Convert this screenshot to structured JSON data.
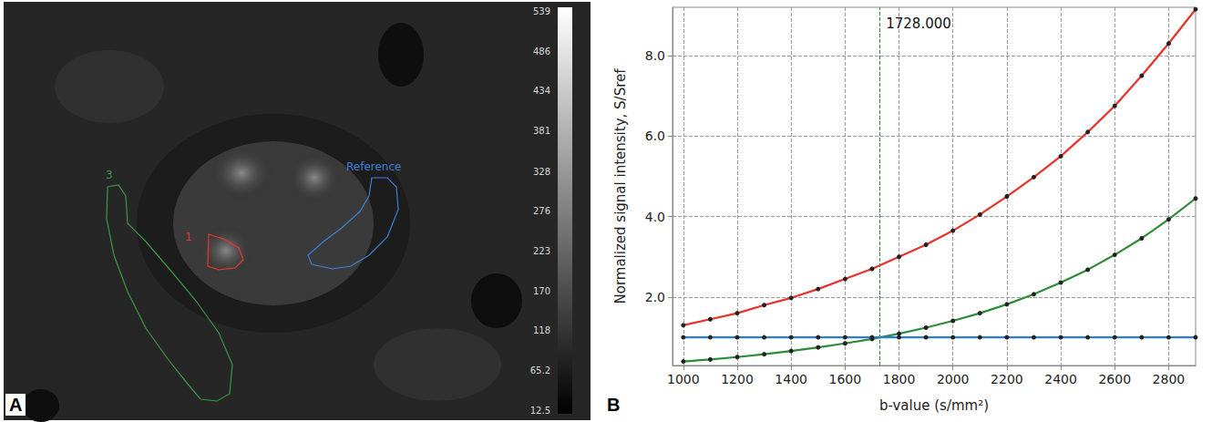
{
  "image_panel": {
    "panel": "A",
    "rois": [
      {
        "label": "3",
        "color": "#3a9a40"
      },
      {
        "label": "1",
        "color": "#e8372c"
      },
      {
        "label": "Reference",
        "color": "#3f7fd8"
      }
    ],
    "colorbar_ticks": [
      539,
      486,
      434,
      381,
      328,
      276,
      223,
      170,
      118,
      65.2,
      12.5
    ]
  },
  "chart_data": {
    "type": "line",
    "panel": "B",
    "x_label": "b-value (s/mm²)",
    "y_label": "Normalized signal intensity, S/Sref",
    "x": [
      1000,
      1100,
      1200,
      1300,
      1400,
      1500,
      1600,
      1700,
      1800,
      1900,
      2000,
      2100,
      2200,
      2300,
      2400,
      2500,
      2600,
      2700,
      2800,
      2900
    ],
    "series": [
      {
        "name": "1",
        "color": "#e8312a",
        "values": [
          1.3,
          1.45,
          1.6,
          1.8,
          1.98,
          2.2,
          2.45,
          2.7,
          3.0,
          3.3,
          3.65,
          4.05,
          4.5,
          4.98,
          5.5,
          6.1,
          6.75,
          7.5,
          8.3,
          9.15
        ]
      },
      {
        "name": "3",
        "color": "#2e8b3a",
        "values": [
          0.4,
          0.45,
          0.51,
          0.58,
          0.66,
          0.75,
          0.85,
          0.96,
          1.09,
          1.24,
          1.41,
          1.6,
          1.82,
          2.07,
          2.36,
          2.68,
          3.05,
          3.46,
          3.93,
          4.45
        ]
      },
      {
        "name": "Reference",
        "color": "#2a7fd4",
        "values": [
          1.0,
          1.0,
          1.0,
          1.0,
          1.0,
          1.0,
          1.0,
          1.0,
          1.0,
          1.0,
          1.0,
          1.0,
          1.0,
          1.0,
          1.0,
          1.0,
          1.0,
          1.0,
          1.0,
          1.0
        ]
      }
    ],
    "annotations": [
      {
        "x": 1728,
        "text": "1728.000",
        "series": "3"
      }
    ],
    "xlim": [
      960,
      2900
    ],
    "xticks": [
      1000,
      1200,
      1400,
      1600,
      1800,
      2000,
      2200,
      2400,
      2600,
      2800
    ],
    "ylim": [
      0.3,
      9.2
    ],
    "yticks": [
      {
        "value": 2,
        "label": "2.0"
      },
      {
        "value": 4,
        "label": "4.0"
      },
      {
        "value": 6,
        "label": "6.0"
      },
      {
        "value": 8,
        "label": "8.0"
      }
    ],
    "grid": true,
    "marker": "circle",
    "line_style": "solid"
  }
}
